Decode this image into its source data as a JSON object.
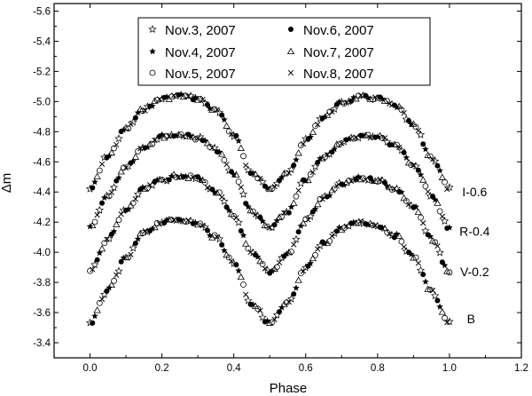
{
  "chart_data": {
    "type": "scatter",
    "xlabel": "Phase",
    "ylabel": "Δm",
    "xlim": [
      -0.1,
      1.2
    ],
    "ylim": [
      -3.3,
      -5.65
    ],
    "y_inverted": true,
    "xticks": [
      0.0,
      0.2,
      0.4,
      0.6,
      0.8,
      1.0,
      1.2
    ],
    "xtick_labels": [
      "0.0",
      "0.2",
      "0.4",
      "0.6",
      "0.8",
      "1.0",
      "1.2"
    ],
    "yticks": [
      -3.4,
      -3.6,
      -3.8,
      -4.0,
      -4.2,
      -4.4,
      -4.6,
      -4.8,
      -5.0,
      -5.2,
      -5.4,
      -5.6
    ],
    "ytick_labels": [
      "-3.4",
      "-3.6",
      "-3.8",
      "-4.0",
      "-4.2",
      "-4.4",
      "-4.6",
      "-4.8",
      "-5.0",
      "-5.2",
      "-5.4",
      "-5.6"
    ],
    "grid": false,
    "legend_position": "top-center",
    "legend": [
      {
        "label": "Nov.3, 2007",
        "marker": "star-open"
      },
      {
        "label": "Nov.6, 2007",
        "marker": "circle-filled"
      },
      {
        "label": "Nov.4, 2007",
        "marker": "star-filled"
      },
      {
        "label": "Nov.7, 2007",
        "marker": "triangle-open"
      },
      {
        "label": "Nov.5, 2007",
        "marker": "circle-open"
      },
      {
        "label": "Nov.8, 2007",
        "marker": "x"
      }
    ],
    "curve_labels": [
      {
        "text": "I-0.6",
        "phase": 1.07,
        "dm": -4.4
      },
      {
        "text": "R-0.4",
        "phase": 1.07,
        "dm": -4.14
      },
      {
        "text": "V-0.2",
        "phase": 1.07,
        "dm": -3.87
      },
      {
        "text": "B",
        "phase": 1.06,
        "dm": -3.56
      }
    ],
    "series": [
      {
        "name": "I-0.6",
        "x": [
          0.0,
          0.05,
          0.1,
          0.15,
          0.2,
          0.25,
          0.3,
          0.35,
          0.4,
          0.45,
          0.5,
          0.55,
          0.6,
          0.65,
          0.7,
          0.75,
          0.8,
          0.85,
          0.9,
          0.95,
          1.0
        ],
        "y": [
          -4.42,
          -4.64,
          -4.82,
          -4.95,
          -5.02,
          -5.04,
          -5.02,
          -4.94,
          -4.78,
          -4.52,
          -4.43,
          -4.52,
          -4.74,
          -4.9,
          -4.99,
          -5.03,
          -5.02,
          -4.97,
          -4.84,
          -4.63,
          -4.42
        ]
      },
      {
        "name": "R-0.4",
        "x": [
          0.0,
          0.05,
          0.1,
          0.15,
          0.2,
          0.25,
          0.3,
          0.35,
          0.4,
          0.45,
          0.5,
          0.55,
          0.6,
          0.65,
          0.7,
          0.75,
          0.8,
          0.85,
          0.9,
          0.95,
          1.0
        ],
        "y": [
          -4.16,
          -4.38,
          -4.57,
          -4.7,
          -4.77,
          -4.78,
          -4.76,
          -4.68,
          -4.52,
          -4.27,
          -4.16,
          -4.27,
          -4.48,
          -4.63,
          -4.73,
          -4.77,
          -4.77,
          -4.71,
          -4.58,
          -4.38,
          -4.16
        ]
      },
      {
        "name": "V-0.2",
        "x": [
          0.0,
          0.05,
          0.1,
          0.15,
          0.2,
          0.25,
          0.3,
          0.35,
          0.4,
          0.45,
          0.5,
          0.55,
          0.6,
          0.65,
          0.7,
          0.75,
          0.8,
          0.85,
          0.9,
          0.95,
          1.0
        ],
        "y": [
          -3.87,
          -4.09,
          -4.28,
          -4.42,
          -4.48,
          -4.51,
          -4.49,
          -4.4,
          -4.24,
          -3.99,
          -3.87,
          -3.99,
          -4.21,
          -4.36,
          -4.45,
          -4.49,
          -4.48,
          -4.42,
          -4.3,
          -4.09,
          -3.87
        ]
      },
      {
        "name": "B",
        "x": [
          0.0,
          0.05,
          0.1,
          0.15,
          0.2,
          0.25,
          0.3,
          0.35,
          0.4,
          0.45,
          0.5,
          0.55,
          0.6,
          0.65,
          0.7,
          0.75,
          0.8,
          0.85,
          0.9,
          0.95,
          1.0
        ],
        "y": [
          -3.53,
          -3.75,
          -3.96,
          -4.13,
          -4.2,
          -4.22,
          -4.19,
          -4.1,
          -3.93,
          -3.66,
          -3.53,
          -3.66,
          -3.89,
          -4.06,
          -4.16,
          -4.2,
          -4.18,
          -4.11,
          -3.97,
          -3.74,
          -3.53
        ]
      }
    ]
  }
}
